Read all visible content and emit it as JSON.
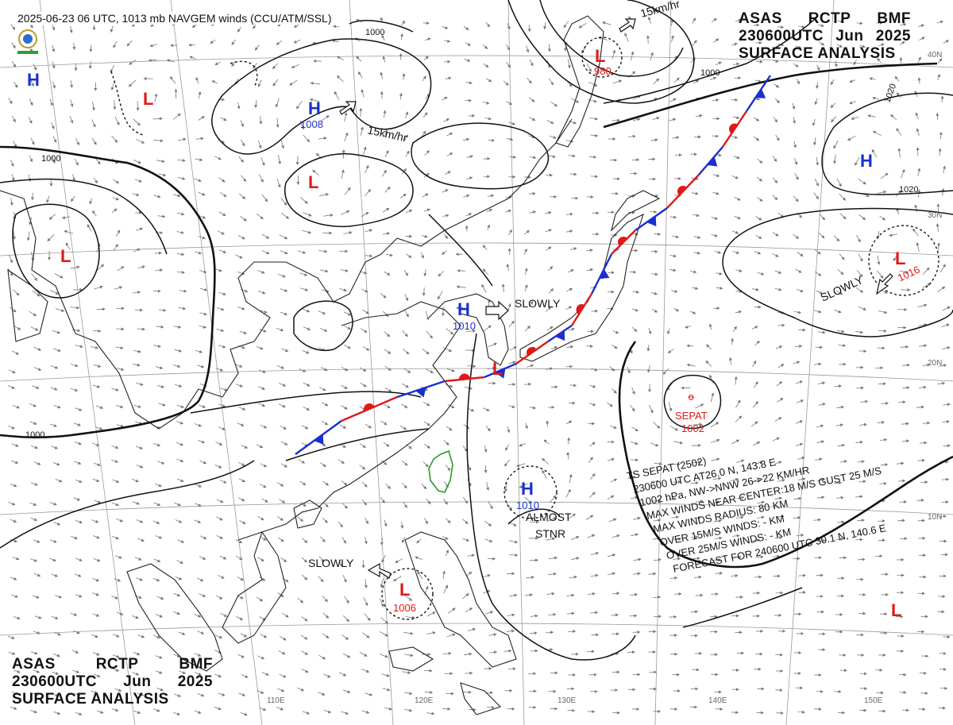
{
  "header": {
    "top_line": "2025-06-23 06 UTC, 1013 mb NAVGEM winds (CCU/ATM/SSL)",
    "line1": [
      "ASAS",
      "RCTP",
      "BMF"
    ],
    "line2": [
      "230600UTC",
      "Jun",
      "2025"
    ],
    "line3": "SURFACE ANALYSIS"
  },
  "pressure_systems": [
    {
      "type": "H",
      "value": "1008"
    },
    {
      "type": "H",
      "value": "1010"
    },
    {
      "type": "H",
      "value": "1010"
    },
    {
      "type": "H",
      "value": ""
    },
    {
      "type": "H",
      "value": ""
    },
    {
      "type": "L",
      "value": "980"
    },
    {
      "type": "L",
      "value": "1016"
    },
    {
      "type": "L",
      "value": "1006"
    },
    {
      "type": "L",
      "value": ""
    },
    {
      "type": "L",
      "value": ""
    },
    {
      "type": "L",
      "value": ""
    },
    {
      "type": "L",
      "value": ""
    },
    {
      "type": "L",
      "value": ""
    }
  ],
  "motion_labels": {
    "slowly_1": "SLOWLY",
    "slowly_2": "SLOWLY",
    "slowly_3": "SLOWLY",
    "almost_stnr_1": "ALMOST",
    "almost_stnr_2": "STNR",
    "speed_1": "15km/hr",
    "speed_2": "15km/hr"
  },
  "isobar_labels": [
    "1000",
    "1000",
    "1000",
    "1000",
    "1020",
    "1020"
  ],
  "tropical_storm": {
    "name": "SEPAT",
    "pressure": "1002",
    "bulletin": [
      "TS  SEPAT  (2502)",
      "230600 UTC  AT26.0 N, 143.8 E",
      "1002 hPa, NW->NNW  26->22 KM/HR",
      "MAX WINDS NEAR CENTER:18 M/S GUST 25 M/S",
      "MAX WINDS RADIUS: 80 KM",
      "OVER 15M/S WINDS:  - KM",
      "OVER 25M/S WINDS:  - KM",
      "FORECAST FOR 240600 UTC 30.1 N, 140.6 E"
    ]
  },
  "longitude_labels": [
    "110E",
    "120E",
    "130E",
    "140E",
    "150E"
  ],
  "latitude_labels": [
    "40N",
    "30N",
    "20N",
    "10N"
  ],
  "colors": {
    "high": "#1a2fd0",
    "low": "#e01818",
    "cold_front": "#1a2fd0",
    "warm_front": "#e01818",
    "isobar": "#111111",
    "coast": "#222222",
    "wind": "#777777"
  },
  "icons": [
    "ccu-logo-icon",
    "wind-arrow-icon",
    "motion-arrow-icon"
  ]
}
